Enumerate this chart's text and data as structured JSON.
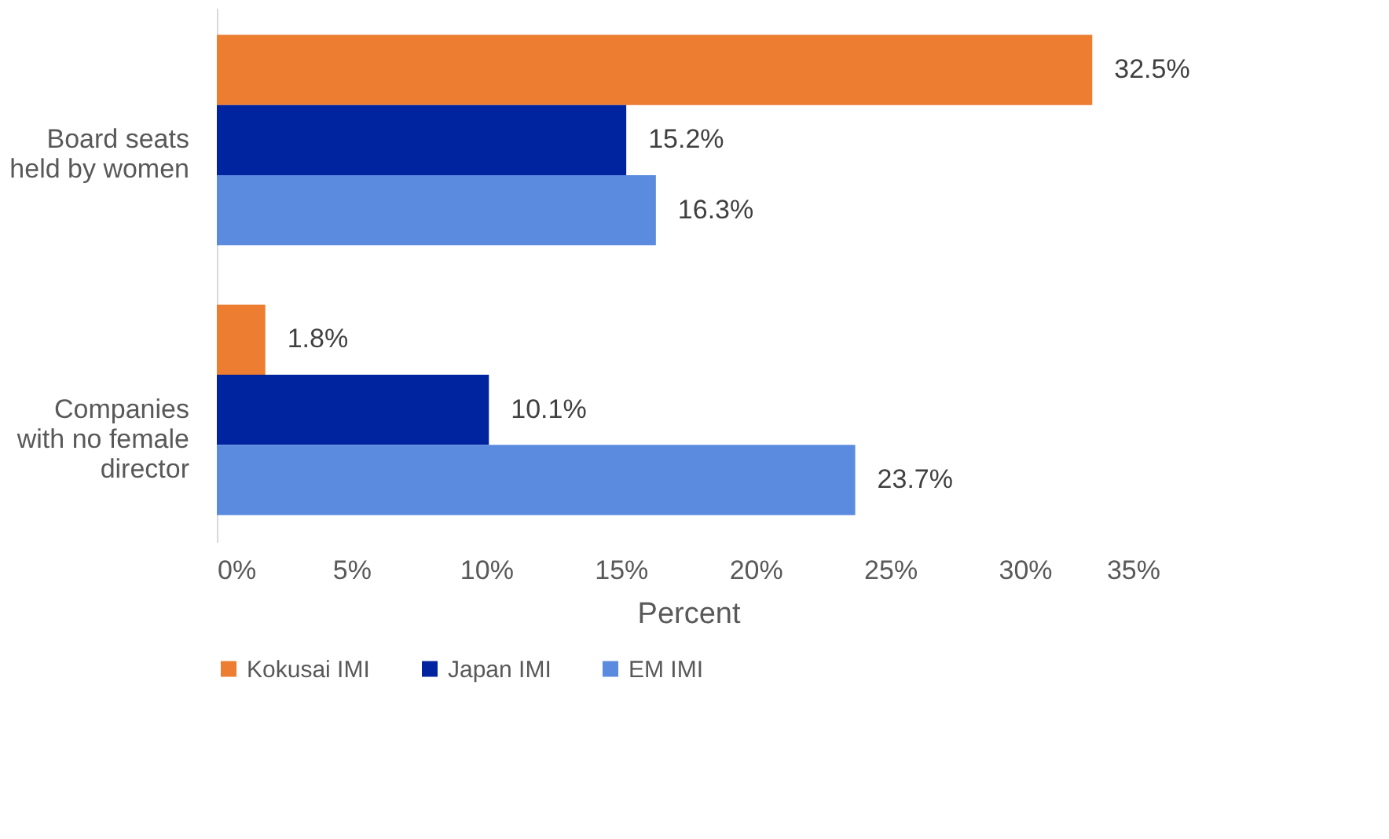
{
  "chart_data": {
    "type": "bar",
    "orientation": "horizontal",
    "categories": [
      "Board seats\nheld by women",
      "Companies\nwith no female\ndirector"
    ],
    "series": [
      {
        "name": "Kokusai IMI",
        "color": "#ed7d31",
        "values": [
          32.5,
          1.8
        ],
        "value_labels": [
          "32.5%",
          "1.8%"
        ]
      },
      {
        "name": "Japan IMI",
        "color": "#0023a0",
        "values": [
          15.2,
          10.1
        ],
        "value_labels": [
          "15.2%",
          "10.1%"
        ]
      },
      {
        "name": "EM IMI",
        "color": "#5b8bdf",
        "values": [
          16.3,
          23.7
        ],
        "value_labels": [
          "16.3%",
          "23.7%"
        ]
      }
    ],
    "xlim": [
      0,
      35
    ],
    "xticks": [
      {
        "value": 0,
        "label": "0%"
      },
      {
        "value": 5,
        "label": "5%"
      },
      {
        "value": 10,
        "label": "10%"
      },
      {
        "value": 15,
        "label": "15%"
      },
      {
        "value": 20,
        "label": "20%"
      },
      {
        "value": 25,
        "label": "25%"
      },
      {
        "value": 30,
        "label": "30%"
      },
      {
        "value": 35,
        "label": "35%"
      }
    ],
    "xlabel": "Percent",
    "grid": false,
    "legend": "bottom"
  }
}
